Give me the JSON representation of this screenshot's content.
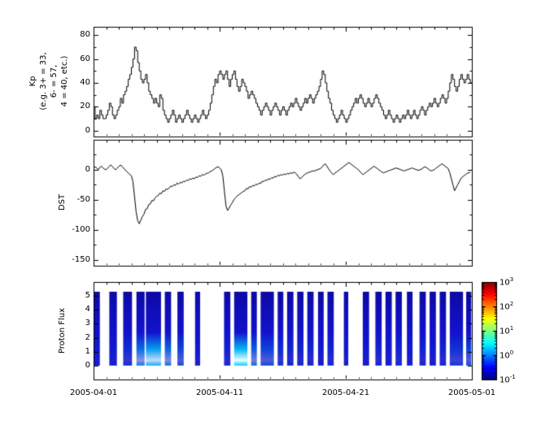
{
  "figure": {
    "x_tick_labels": [
      "2005-04-01",
      "2005-04-11",
      "2005-04-21",
      "2005-05-01"
    ]
  },
  "chart_data": [
    {
      "type": "line",
      "style": "step",
      "ylabel": "Kp (e.g. 3+ = 33, 6- = 57, 4 = 40, etc.)",
      "ylabel_lines": [
        "Kp",
        "(e.g. 3+ = 33,",
        "6- = 57,",
        "4 = 40, etc.)"
      ],
      "x_range": [
        "2005-04-01",
        "2005-05-01"
      ],
      "samples_per_day": 8,
      "ylim": [
        -5,
        87
      ],
      "y_ticks": [
        0,
        20,
        40,
        60,
        80
      ],
      "values": [
        20,
        10,
        13,
        10,
        17,
        13,
        10,
        10,
        13,
        17,
        23,
        20,
        13,
        10,
        13,
        17,
        20,
        27,
        23,
        30,
        33,
        37,
        43,
        47,
        53,
        60,
        70,
        67,
        57,
        50,
        43,
        40,
        43,
        47,
        40,
        33,
        30,
        27,
        23,
        27,
        23,
        20,
        30,
        27,
        17,
        13,
        10,
        7,
        10,
        13,
        17,
        13,
        7,
        10,
        13,
        10,
        7,
        10,
        13,
        17,
        13,
        10,
        7,
        10,
        13,
        10,
        7,
        10,
        13,
        17,
        13,
        10,
        13,
        17,
        23,
        30,
        37,
        43,
        40,
        47,
        50,
        47,
        43,
        47,
        50,
        43,
        37,
        43,
        47,
        50,
        43,
        37,
        33,
        37,
        43,
        40,
        37,
        33,
        27,
        30,
        33,
        30,
        27,
        23,
        20,
        17,
        13,
        17,
        20,
        23,
        20,
        17,
        13,
        17,
        20,
        23,
        20,
        17,
        13,
        17,
        20,
        17,
        13,
        17,
        20,
        23,
        20,
        23,
        27,
        23,
        20,
        17,
        20,
        23,
        27,
        23,
        27,
        30,
        27,
        23,
        27,
        30,
        33,
        37,
        43,
        50,
        47,
        40,
        33,
        27,
        23,
        17,
        13,
        10,
        7,
        10,
        13,
        17,
        13,
        10,
        7,
        10,
        13,
        17,
        20,
        23,
        27,
        23,
        27,
        30,
        27,
        23,
        20,
        23,
        27,
        23,
        20,
        23,
        27,
        30,
        27,
        23,
        20,
        17,
        13,
        10,
        13,
        17,
        13,
        10,
        7,
        10,
        13,
        10,
        7,
        10,
        13,
        10,
        13,
        17,
        13,
        10,
        13,
        17,
        13,
        10,
        13,
        17,
        20,
        17,
        13,
        17,
        20,
        23,
        20,
        23,
        27,
        23,
        20,
        23,
        27,
        30,
        27,
        23,
        27,
        33,
        40,
        47,
        43,
        37,
        33,
        37,
        43,
        47,
        43,
        40,
        43,
        47,
        43,
        40
      ]
    },
    {
      "type": "line",
      "ylabel": "DST",
      "x_range": [
        "2005-04-01",
        "2005-05-01"
      ],
      "samples_per_day": 8,
      "ylim": [
        -160,
        50
      ],
      "y_ticks": [
        0,
        -50,
        -100,
        -150
      ],
      "values": [
        2,
        5,
        3,
        0,
        4,
        6,
        3,
        1,
        0,
        3,
        6,
        8,
        5,
        2,
        0,
        3,
        5,
        8,
        6,
        3,
        0,
        -3,
        -5,
        -8,
        -10,
        -20,
        -45,
        -70,
        -85,
        -90,
        -84,
        -78,
        -74,
        -66,
        -65,
        -58,
        -57,
        -51,
        -52,
        -47,
        -44,
        -43,
        -39,
        -40,
        -35,
        -36,
        -32,
        -33,
        -30,
        -27,
        -28,
        -25,
        -26,
        -22,
        -24,
        -21,
        -22,
        -19,
        -20,
        -17,
        -18,
        -15,
        -16,
        -14,
        -15,
        -12,
        -13,
        -10,
        -11,
        -8,
        -9,
        -7,
        -6,
        -5,
        -3,
        -2,
        0,
        2,
        4,
        5,
        3,
        0,
        -10,
        -35,
        -60,
        -68,
        -64,
        -59,
        -55,
        -50,
        -47,
        -44,
        -42,
        -40,
        -38,
        -36,
        -35,
        -31,
        -32,
        -28,
        -29,
        -26,
        -27,
        -24,
        -25,
        -22,
        -23,
        -19,
        -20,
        -17,
        -18,
        -15,
        -16,
        -13,
        -14,
        -11,
        -12,
        -9,
        -10,
        -8,
        -9,
        -7,
        -8,
        -6,
        -7,
        -5,
        -6,
        -4,
        -5,
        -8,
        -12,
        -15,
        -13,
        -10,
        -8,
        -6,
        -5,
        -4,
        -3,
        -2,
        -2,
        -1,
        0,
        1,
        2,
        5,
        8,
        10,
        6,
        2,
        -2,
        -5,
        -8,
        -6,
        -4,
        -2,
        0,
        2,
        4,
        6,
        8,
        10,
        12,
        10,
        8,
        6,
        4,
        2,
        0,
        -3,
        -6,
        -8,
        -6,
        -4,
        -2,
        0,
        2,
        4,
        6,
        4,
        2,
        0,
        -2,
        -4,
        -5,
        -4,
        -3,
        -2,
        -1,
        0,
        1,
        2,
        3,
        2,
        1,
        0,
        -1,
        -2,
        -1,
        0,
        1,
        2,
        3,
        2,
        1,
        0,
        -1,
        0,
        1,
        3,
        5,
        4,
        2,
        0,
        -2,
        -1,
        0,
        2,
        4,
        6,
        8,
        10,
        8,
        6,
        4,
        2,
        -5,
        -15,
        -25,
        -35,
        -30,
        -25,
        -20,
        -15,
        -12,
        -10,
        -8,
        -6,
        -5,
        -4
      ]
    },
    {
      "type": "heatmap",
      "ylabel": "Proton Flux",
      "x_range": [
        "2005-04-01",
        "2005-05-01"
      ],
      "ylim": [
        -1,
        6
      ],
      "y_ticks": [
        0,
        1,
        2,
        3,
        4,
        5
      ],
      "band_range": [
        0,
        5.3
      ],
      "base_color": "#1212cd",
      "hot_color": "#e6ffff",
      "stripes": [
        {
          "start": 0.05,
          "end": 0.5,
          "hot": 0.05
        },
        {
          "start": 1.25,
          "end": 1.85,
          "hot": 0.05
        },
        {
          "start": 2.35,
          "end": 3.05,
          "hot": 0.15
        },
        {
          "start": 3.4,
          "end": 4.05,
          "hot": 0.55
        },
        {
          "start": 4.15,
          "end": 5.35,
          "hot": 0.85
        },
        {
          "start": 5.65,
          "end": 6.15,
          "hot": 0.5
        },
        {
          "start": 6.65,
          "end": 7.15,
          "hot": 0.3
        },
        {
          "start": 8.05,
          "end": 8.45,
          "hot": 0.05
        },
        {
          "start": 10.35,
          "end": 10.85,
          "hot": 0.1
        },
        {
          "start": 11.15,
          "end": 12.2,
          "hot": 1.0
        },
        {
          "start": 12.5,
          "end": 12.95,
          "hot": 0.45
        },
        {
          "start": 13.25,
          "end": 14.3,
          "hot": 0.3
        },
        {
          "start": 14.6,
          "end": 15.05,
          "hot": 0.15
        },
        {
          "start": 15.35,
          "end": 15.85,
          "hot": 0.1
        },
        {
          "start": 16.15,
          "end": 16.65,
          "hot": 0.1
        },
        {
          "start": 16.95,
          "end": 17.45,
          "hot": 0.1
        },
        {
          "start": 17.8,
          "end": 18.25,
          "hot": 0.05
        },
        {
          "start": 18.55,
          "end": 19.05,
          "hot": 0.1
        },
        {
          "start": 19.85,
          "end": 20.2,
          "hot": 0.05
        },
        {
          "start": 21.35,
          "end": 21.85,
          "hot": 0.05
        },
        {
          "start": 22.35,
          "end": 22.85,
          "hot": 0.1
        },
        {
          "start": 23.15,
          "end": 23.65,
          "hot": 0.05
        },
        {
          "start": 23.95,
          "end": 24.45,
          "hot": 0.1
        },
        {
          "start": 24.85,
          "end": 25.3,
          "hot": 0.05
        },
        {
          "start": 25.85,
          "end": 26.35,
          "hot": 0.1
        },
        {
          "start": 26.65,
          "end": 27.15,
          "hot": 0.05
        },
        {
          "start": 27.45,
          "end": 27.95,
          "hot": 0.1
        },
        {
          "start": 28.25,
          "end": 29.3,
          "hot": 0.2
        },
        {
          "start": 29.55,
          "end": 29.95,
          "hot": 0.3
        }
      ],
      "colorbar": {
        "scale": "log",
        "tick_labels": [
          "10^3",
          "10^2",
          "10^1",
          "10^0",
          "10^-1"
        ],
        "stops": [
          {
            "p": 0,
            "c": "#000080"
          },
          {
            "p": 0.125,
            "c": "#0000ff"
          },
          {
            "p": 0.375,
            "c": "#00ffff"
          },
          {
            "p": 0.625,
            "c": "#ffff00"
          },
          {
            "p": 0.875,
            "c": "#ff0000"
          },
          {
            "p": 1,
            "c": "#800000"
          }
        ]
      }
    }
  ]
}
